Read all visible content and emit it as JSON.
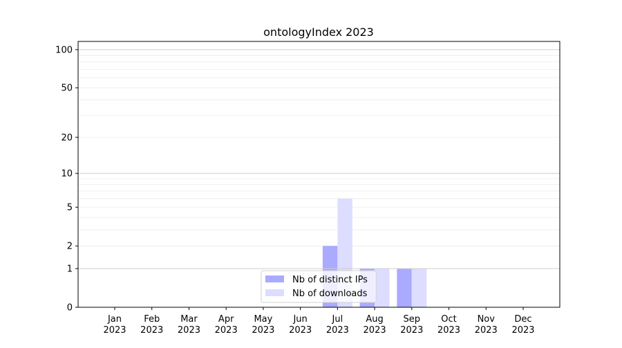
{
  "chart_data": {
    "type": "bar",
    "title": "ontologyIndex 2023",
    "xlabel": "",
    "ylabel": "",
    "y_scale": "log(1+y)",
    "ylim": [
      0,
      116
    ],
    "yticks": [
      0,
      1,
      2,
      5,
      10,
      20,
      50,
      100
    ],
    "grid": true,
    "legend_position": "lower-center",
    "categories": [
      "Jan\n2023",
      "Feb\n2023",
      "Mar\n2023",
      "Apr\n2023",
      "May\n2023",
      "Jun\n2023",
      "Jul\n2023",
      "Aug\n2023",
      "Sep\n2023",
      "Oct\n2023",
      "Nov\n2023",
      "Dec\n2023"
    ],
    "series": [
      {
        "name": "Nb of distinct IPs",
        "color": "#aaaaff",
        "values": [
          0,
          0,
          0,
          0,
          0,
          0,
          2,
          1,
          1,
          0,
          0,
          0
        ]
      },
      {
        "name": "Nb of downloads",
        "color": "#ddddff",
        "values": [
          0,
          0,
          0,
          0,
          0,
          0,
          6,
          1,
          1,
          0,
          0,
          0
        ]
      }
    ]
  }
}
